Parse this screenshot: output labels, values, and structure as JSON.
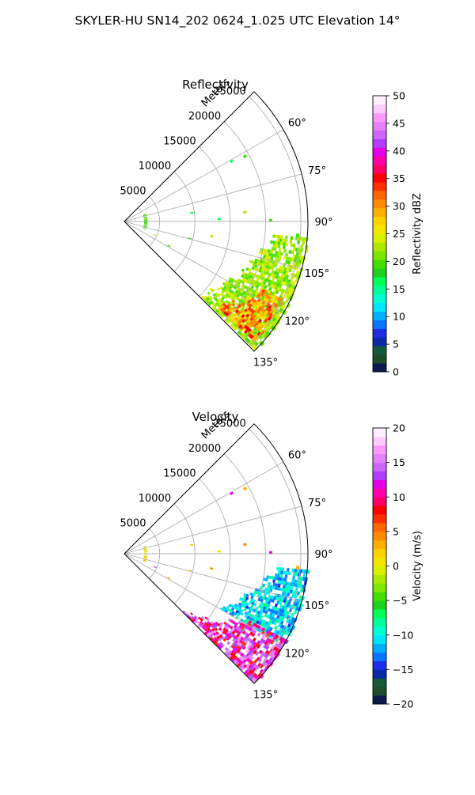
{
  "title": "SKYLER-HU  SN14_202  0624_1.025 UTC Elevation 14°",
  "chart_data": [
    {
      "type": "heatmap",
      "title": "Reflectivity",
      "projection": "polar-sector",
      "azimuth_range_deg": [
        45,
        135
      ],
      "range_max_m": 26000,
      "range_axis_label": "Meters",
      "range_ticks": [
        5000,
        10000,
        15000,
        20000,
        25000
      ],
      "range_tick_labels": [
        "5000",
        "10000",
        "15000",
        "20000",
        "25000"
      ],
      "azimuth_ticks": [
        60,
        75,
        90,
        105,
        120,
        135
      ],
      "azimuth_tick_labels": [
        "60°",
        "75°",
        "90°",
        "105°",
        "120°",
        "135°"
      ],
      "grid": true,
      "colorbar": {
        "label": "Reflectivity dBZ",
        "min": 0,
        "max": 50,
        "ticks": [
          0,
          5,
          10,
          15,
          20,
          25,
          30,
          35,
          40,
          45,
          50
        ],
        "tick_labels": [
          "0",
          "5",
          "10",
          "15",
          "20",
          "25",
          "30",
          "35",
          "40",
          "45",
          "50"
        ],
        "colors": [
          "#0b1a4d",
          "#1e4d2a",
          "#135a3a",
          "#0b2aa8",
          "#1f2ee6",
          "#0a76ff",
          "#00b0ff",
          "#00e5ff",
          "#00ffd0",
          "#00ff9a",
          "#00ff55",
          "#1ed11e",
          "#42e000",
          "#7ce800",
          "#aee800",
          "#d8f000",
          "#f2e600",
          "#ffd200",
          "#ffb000",
          "#ff8c00",
          "#ff6600",
          "#ff3000",
          "#ff0000",
          "#ff0066",
          "#ff00aa",
          "#e600e6",
          "#b33cff",
          "#cc66ff",
          "#e680ff",
          "#ff99ff",
          "#ffccff",
          "#fff0ff"
        ]
      },
      "echo_regions": [
        {
          "name": "near-arc",
          "az": [
            110,
            70
          ],
          "range_m": [
            2800,
            3300
          ],
          "value": 20
        },
        {
          "name": "storm-band",
          "az": [
            95,
            134
          ],
          "range_m": [
            14000,
            26000
          ],
          "value": 22
        },
        {
          "name": "storm-core",
          "az": [
            116,
            132
          ],
          "range_m": [
            17000,
            25000
          ],
          "value": 30
        }
      ]
    },
    {
      "type": "heatmap",
      "title": "Velocity",
      "projection": "polar-sector",
      "azimuth_range_deg": [
        45,
        135
      ],
      "range_max_m": 26000,
      "range_axis_label": "Meters",
      "range_ticks": [
        5000,
        10000,
        15000,
        20000,
        25000
      ],
      "range_tick_labels": [
        "5000",
        "10000",
        "15000",
        "20000",
        "25000"
      ],
      "azimuth_ticks": [
        60,
        75,
        90,
        105,
        120,
        135
      ],
      "azimuth_tick_labels": [
        "60°",
        "75°",
        "90°",
        "105°",
        "120°",
        "135°"
      ],
      "grid": true,
      "colorbar": {
        "label": "Velocity (m/s)",
        "min": -20,
        "max": 20,
        "ticks": [
          -20,
          -15,
          -10,
          -5,
          0,
          5,
          10,
          15,
          20
        ],
        "tick_labels": [
          "−20",
          "−15",
          "−10",
          "−5",
          "0",
          "5",
          "10",
          "15",
          "20"
        ],
        "colors": [
          "#0b1a4d",
          "#1e4d2a",
          "#135a3a",
          "#0b2aa8",
          "#1f2ee6",
          "#0a76ff",
          "#00b0ff",
          "#00e5ff",
          "#00ffd0",
          "#00ff9a",
          "#00ff55",
          "#1ed11e",
          "#42e000",
          "#7ce800",
          "#aee800",
          "#d8f000",
          "#f2e600",
          "#ffd200",
          "#ffb000",
          "#ff8c00",
          "#ff6600",
          "#ff3000",
          "#ff0000",
          "#ff0066",
          "#ff00aa",
          "#e600e6",
          "#b33cff",
          "#cc66ff",
          "#e680ff",
          "#ff99ff",
          "#ffccff",
          "#fff0ff"
        ]
      },
      "echo_regions": [
        {
          "name": "near-arc",
          "az": [
            110,
            70
          ],
          "range_m": [
            2800,
            3300
          ],
          "value": 1
        },
        {
          "name": "inbound-band",
          "az": [
            95,
            120
          ],
          "range_m": [
            15000,
            26000
          ],
          "value": -11
        },
        {
          "name": "outbound-core",
          "az": [
            118,
            134
          ],
          "range_m": [
            11000,
            26000
          ],
          "value": 12
        }
      ]
    }
  ]
}
